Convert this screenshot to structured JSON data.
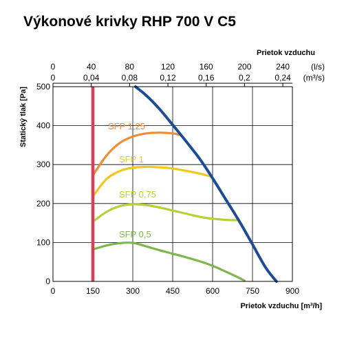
{
  "chart_data": {
    "type": "line",
    "title": "Výkonové krivky RHP 700 V C5",
    "xlabel": "Prietok vzduchu [m³/h]",
    "ylabel": "Statický tlak [Pa]",
    "xlim": [
      0,
      900
    ],
    "ylim": [
      0,
      500
    ],
    "x_ticks": [
      0,
      150,
      300,
      450,
      600,
      750,
      900
    ],
    "y_ticks": [
      0,
      100,
      200,
      300,
      400,
      500
    ],
    "grid": true,
    "top_axis": {
      "label": "Prietok vzduchu",
      "ls_unit": "(l/s)",
      "m3s_unit": "(m³/s)",
      "ls_ticks": [
        "0",
        "40",
        "80",
        "120",
        "160",
        "200",
        "240"
      ],
      "m3s_ticks": [
        "0",
        "0,04",
        "0,08",
        "0,12",
        "0,16",
        "0,2",
        "0,24"
      ],
      "m3h_per_ls": 3.6
    },
    "vertical_marker": {
      "x": 150,
      "color": "#e03a55"
    },
    "series": [
      {
        "name": "SFP 1,25",
        "color": "#f08c32",
        "x": [
          150,
          200,
          250,
          300,
          350,
          400,
          450,
          480
        ],
        "y": [
          272,
          322,
          355,
          372,
          380,
          382,
          380,
          376
        ]
      },
      {
        "name": "SFP 1",
        "color": "#f2c71c",
        "x": [
          150,
          200,
          250,
          300,
          350,
          400,
          450,
          500,
          550,
          590
        ],
        "y": [
          218,
          262,
          283,
          292,
          294,
          293,
          290,
          284,
          277,
          270
        ]
      },
      {
        "name": "SFP 0,75",
        "color": "#b9cf3a",
        "x": [
          150,
          200,
          250,
          300,
          350,
          400,
          450,
          500,
          550,
          600,
          650,
          700
        ],
        "y": [
          153,
          178,
          193,
          198,
          196,
          190,
          182,
          174,
          166,
          161,
          158,
          157
        ]
      },
      {
        "name": "SFP 0,5",
        "color": "#7bb74b",
        "x": [
          150,
          200,
          250,
          300,
          350,
          400,
          450,
          500,
          550,
          600,
          650,
          700,
          720
        ],
        "y": [
          82,
          92,
          98,
          99,
          90,
          80,
          71,
          62,
          52,
          40,
          25,
          9,
          2
        ]
      },
      {
        "name": "",
        "color": "#1a4c9a",
        "x": [
          310,
          350,
          400,
          450,
          500,
          550,
          600,
          650,
          700,
          750,
          800,
          840
        ],
        "y": [
          500,
          478,
          443,
          402,
          360,
          316,
          265,
          210,
          155,
          95,
          35,
          0
        ]
      }
    ]
  }
}
